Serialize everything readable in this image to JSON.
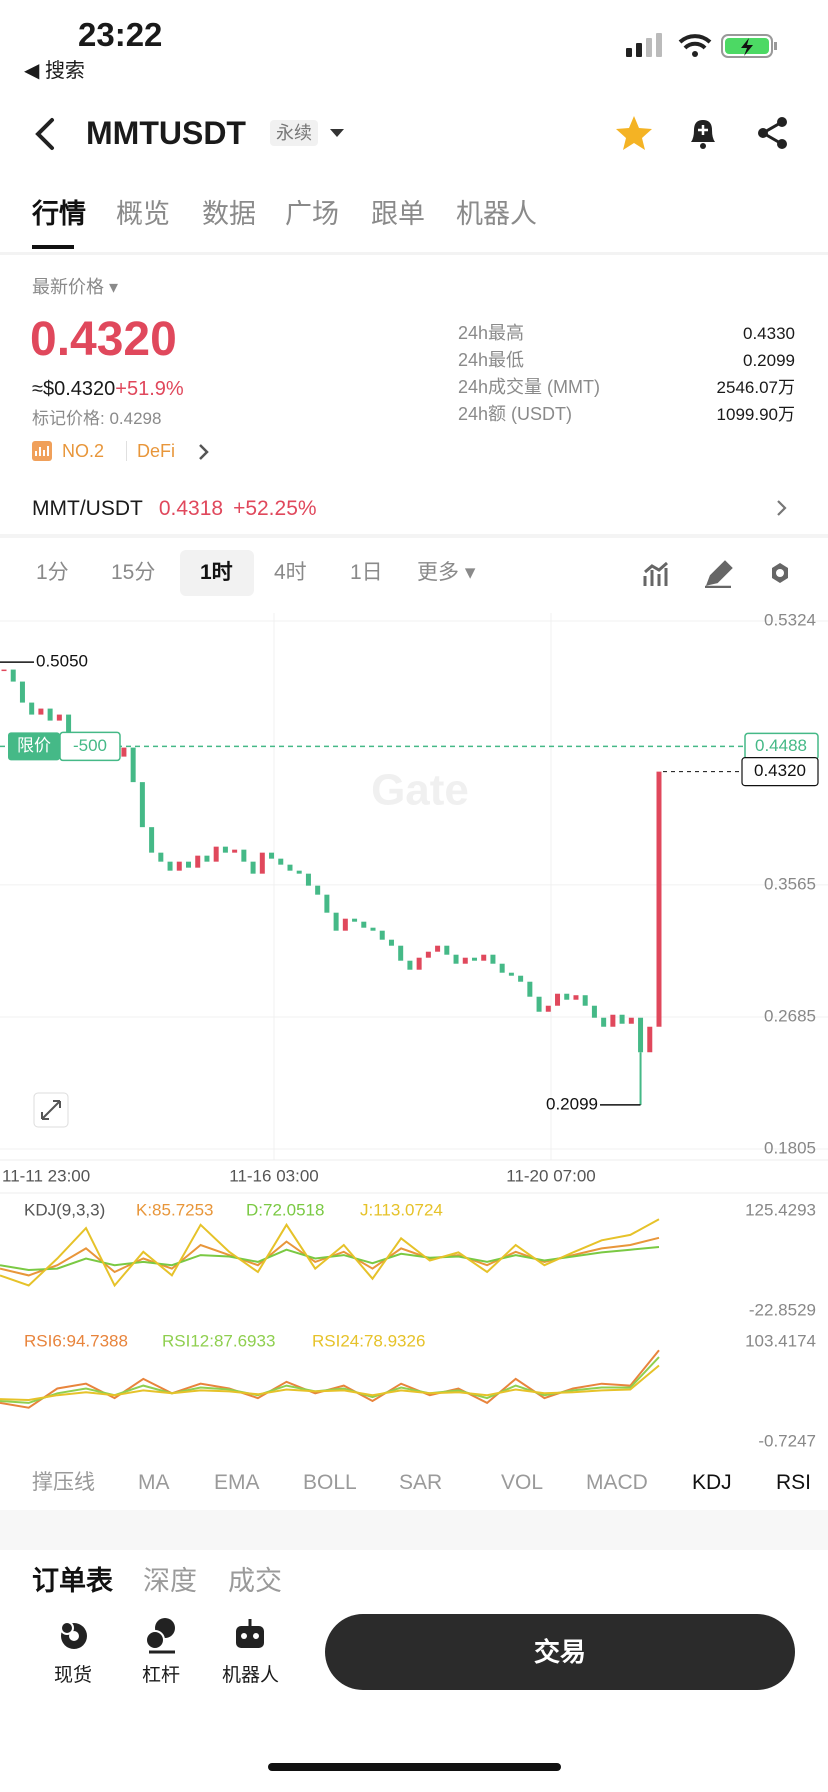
{
  "status_bar": {
    "time": "23:22",
    "back_app": "◀ 搜索"
  },
  "header": {
    "symbol": "MMTUSDT",
    "contract": "永续"
  },
  "tabs": [
    "行情",
    "概览",
    "数据",
    "广场",
    "跟单",
    "机器人"
  ],
  "ticker": {
    "price_label": "最新价格",
    "last_price": "0.4320",
    "usd_price": "≈$0.4320",
    "change": "+51.9%",
    "mark_price": "标记价格: 0.4298",
    "rank": "NO.2",
    "sector": "DeFi",
    "stats": [
      {
        "label": "24h最高",
        "value": "0.4330"
      },
      {
        "label": "24h最低",
        "value": "0.2099"
      },
      {
        "label": "24h成交量 (MMT)",
        "value": "2546.07万"
      },
      {
        "label": "24h额 (USDT)",
        "value": "1099.90万"
      }
    ]
  },
  "spot": {
    "pair": "MMT/USDT",
    "price": "0.4318",
    "change": "+52.25%"
  },
  "intervals": [
    "1分",
    "15分",
    "1时",
    "4时",
    "1日",
    "更多"
  ],
  "chart_data": {
    "type": "candlestick",
    "closes": [
      0.5,
      0.492,
      0.478,
      0.47,
      0.474,
      0.466,
      0.47,
      0.458,
      0.452,
      0.455,
      0.449,
      0.446,
      0.442,
      0.448,
      0.425,
      0.395,
      0.378,
      0.372,
      0.366,
      0.372,
      0.368,
      0.376,
      0.372,
      0.382,
      0.378,
      0.38,
      0.372,
      0.364,
      0.378,
      0.374,
      0.37,
      0.366,
      0.364,
      0.356,
      0.35,
      0.338,
      0.326,
      0.334,
      0.332,
      0.328,
      0.326,
      0.32,
      0.316,
      0.306,
      0.3,
      0.308,
      0.312,
      0.316,
      0.31,
      0.304,
      0.308,
      0.306,
      0.31,
      0.304,
      0.298,
      0.296,
      0.292,
      0.282,
      0.272,
      0.276,
      0.284,
      0.28,
      0.283,
      0.276,
      0.268,
      0.262,
      0.27,
      0.264,
      0.268,
      0.245,
      0.262,
      0.432
    ],
    "up_color": "#e0485c",
    "down_color": "#45b987",
    "ylim": [
      0.1732,
      0.5377
    ],
    "yticks": [
      0.5324,
      0.3565,
      0.2685,
      0.1805
    ],
    "x_labels": [
      "11-11 23:00",
      "11-16 03:00",
      "11-20 07:00"
    ],
    "high_mark": {
      "value": 0.505,
      "label": "0.5050"
    },
    "low_mark": 0.2099,
    "current_price": {
      "value": 0.432,
      "label": "0.4320"
    },
    "limit_order": {
      "label": "限价",
      "qty": "-500",
      "price": 0.4488
    },
    "watermark": "Gate"
  },
  "indicators": {
    "kdj": {
      "title": "KDJ(9,3,3)",
      "ylim": [
        -22.8529,
        125.4293
      ],
      "yticks": [
        125.4293,
        -22.8529
      ],
      "series": [
        {
          "label": "K:85.7253",
          "color": "#e8963a",
          "values": [
            40,
            30,
            45,
            70,
            35,
            55,
            40,
            75,
            60,
            45,
            80,
            50,
            65,
            40,
            70,
            55,
            60,
            45,
            65,
            50,
            60,
            70,
            75,
            85.7253
          ]
        },
        {
          "label": "D:72.0518",
          "color": "#7ac943",
          "values": [
            45,
            38,
            40,
            55,
            45,
            50,
            45,
            60,
            58,
            50,
            68,
            55,
            60,
            48,
            62,
            56,
            58,
            50,
            60,
            52,
            58,
            64,
            68,
            72.0518
          ]
        },
        {
          "label": "J:113.0724",
          "color": "#e6c229",
          "values": [
            30,
            15,
            55,
            100,
            15,
            65,
            30,
            105,
            65,
            35,
            105,
            40,
            75,
            25,
            85,
            52,
            64,
            35,
            75,
            45,
            64,
            82,
            90,
            113.0724
          ]
        }
      ]
    },
    "rsi": {
      "ylim": [
        -0.7247,
        103.4174
      ],
      "yticks": [
        103.4174,
        -0.7247
      ],
      "series": [
        {
          "label": "RSI6:94.7388",
          "color": "#e8843c",
          "values": [
            40,
            35,
            55,
            60,
            45,
            65,
            50,
            60,
            55,
            45,
            62,
            50,
            58,
            42,
            60,
            48,
            55,
            40,
            65,
            45,
            55,
            60,
            58,
            94.7388
          ]
        },
        {
          "label": "RSI12:87.6933",
          "color": "#8fcf4f",
          "values": [
            42,
            40,
            50,
            55,
            48,
            58,
            50,
            56,
            54,
            48,
            58,
            52,
            55,
            46,
            56,
            50,
            53,
            45,
            58,
            48,
            53,
            56,
            56,
            87.6933
          ]
        },
        {
          "label": "RSI24:78.9326",
          "color": "#e6c229",
          "values": [
            44,
            43,
            48,
            51,
            48,
            53,
            50,
            53,
            52,
            49,
            54,
            52,
            53,
            48,
            53,
            50,
            51,
            48,
            54,
            50,
            51,
            53,
            54,
            78.9326
          ]
        }
      ]
    }
  },
  "indicator_tabs": [
    "撑压线",
    "MA",
    "EMA",
    "BOLL",
    "SAR",
    "VOL",
    "MACD",
    "KDJ",
    "RSI"
  ],
  "order_tabs": [
    "订单表",
    "深度",
    "成交"
  ],
  "bottom_nav": [
    "现货",
    "杠杆",
    "机器人"
  ],
  "trade_button": "交易"
}
